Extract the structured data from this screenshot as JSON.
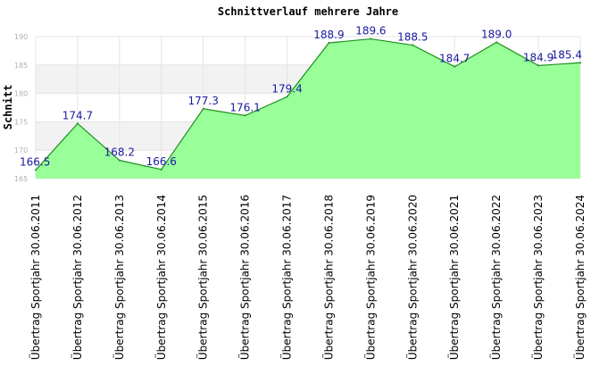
{
  "chart_data": {
    "type": "area",
    "title": "Schnittverlauf mehrere Jahre",
    "xlabel": "",
    "ylabel": "Schnitt",
    "ylim": [
      165,
      190
    ],
    "yticks": [
      165,
      170,
      175,
      180,
      185,
      190
    ],
    "ytick_labels": [
      "165",
      "170",
      "175",
      "180",
      "185",
      "190"
    ],
    "grid": "horizontal bands",
    "legend": "none",
    "categories": [
      "Übertrag Sportjahr 30.06.2011",
      "Übertrag Sportjahr 30.06.2012",
      "Übertrag Sportjahr 30.06.2013",
      "Übertrag Sportjahr 30.06.2014",
      "Übertrag Sportjahr 30.06.2015",
      "Übertrag Sportjahr 30.06.2016",
      "Übertrag Sportjahr 30.06.2017",
      "Übertrag Sportjahr 30.06.2018",
      "Übertrag Sportjahr 30.06.2019",
      "Übertrag Sportjahr 30.06.2020",
      "Übertrag Sportjahr 30.06.2021",
      "Übertrag Sportjahr 30.06.2022",
      "Übertrag Sportjahr 30.06.2023",
      "Übertrag Sportjahr 30.06.2024"
    ],
    "values": [
      166.5,
      174.7,
      168.2,
      166.6,
      177.3,
      176.1,
      179.4,
      188.9,
      189.6,
      188.5,
      184.7,
      189.0,
      184.9,
      185.4
    ],
    "value_labels": [
      "166.5",
      "174.7",
      "168.2",
      "166.6",
      "177.3",
      "176.1",
      "179.4",
      "188.9",
      "189.6",
      "188.5",
      "184.7",
      "189.0",
      "184.9",
      "185.4"
    ],
    "colors": {
      "fill": "#99ff99",
      "line": "#1f8f1f",
      "band_alt": "#f2f2f2",
      "value_label": "#1a1aa0"
    }
  }
}
